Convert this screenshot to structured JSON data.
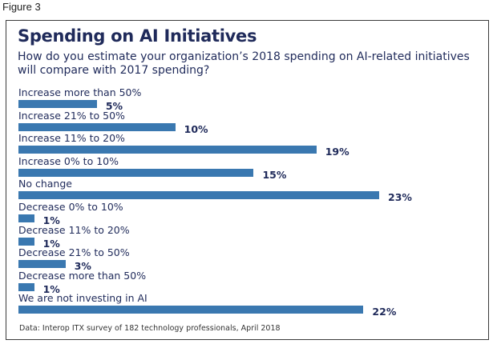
{
  "figure_label": "Figure 3",
  "chart_data": {
    "type": "bar",
    "orientation": "horizontal",
    "title": "Spending on AI Initiatives",
    "subtitle": "How do you estimate your organization’s 2018 spending on AI-related initiatives will compare with 2017 spending?",
    "categories": [
      "Increase more than 50%",
      "Increase 21% to 50%",
      "Increase 11% to 20%",
      "Increase 0% to 10%",
      "No change",
      "Decrease 0% to 10%",
      "Decrease 11% to 20%",
      "Decrease 21% to 50%",
      "Decrease more than 50%",
      "We are not investing in AI"
    ],
    "values": [
      5,
      10,
      19,
      15,
      23,
      1,
      1,
      3,
      1,
      22
    ],
    "value_labels": [
      "5%",
      "10%",
      "19%",
      "15%",
      "23%",
      "1%",
      "1%",
      "3%",
      "1%",
      "22%"
    ],
    "unit": "%",
    "xlabel": "",
    "ylabel": "",
    "xlim": [
      0,
      23
    ],
    "grid": false,
    "legend": "none",
    "bar_color": "#3a78b0",
    "text_color": "#1f2a5a",
    "footnote": "Data: Interop ITX survey of 182 technology professionals, April 2018"
  }
}
